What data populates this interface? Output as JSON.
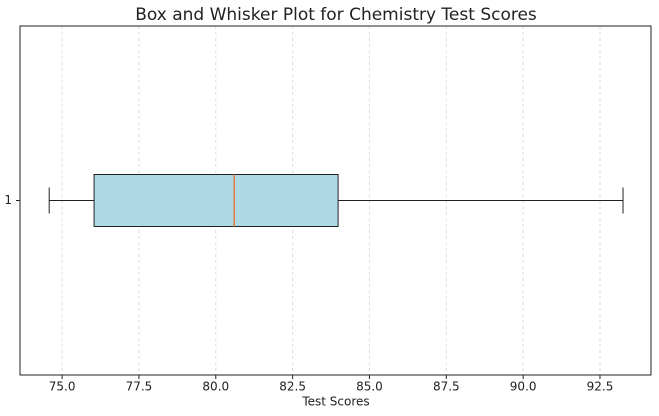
{
  "chart_data": {
    "type": "box",
    "title": "Box and Whisker Plot for Chemistry Test Scores",
    "x_label": "Test Scores",
    "categories": [
      "1"
    ],
    "boxes": [
      {
        "whislo": 74.58,
        "q1": 76.04,
        "med": 80.6,
        "q3": 83.98,
        "whishi": 93.25
      }
    ],
    "box_color": "#add8e6",
    "median_color": "#e07b39",
    "orientation": "horizontal",
    "xlim": [
      73.63,
      94.16
    ],
    "xticks": [
      {
        "value": 75,
        "label": "75.0"
      },
      77.5,
      {
        "value": 80,
        "label": "80.0"
      },
      82.5,
      {
        "value": 85,
        "label": "85.0"
      },
      87.5,
      {
        "value": 90,
        "label": "90.0"
      },
      92.5
    ],
    "grid": true
  }
}
